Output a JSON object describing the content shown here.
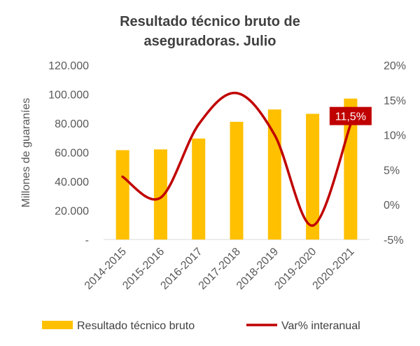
{
  "chart_data": {
    "type": "bar+line",
    "title_lines": [
      "Resultado técnico bruto de",
      "aseguradoras. Julio"
    ],
    "ylabel": "Millones de guaraníes",
    "categories": [
      "2014-2015",
      "2015-2016",
      "2016-2017",
      "2017-2018",
      "2018-2019",
      "2019-2020",
      "2020-2021"
    ],
    "series": [
      {
        "name": "Resultado técnico bruto",
        "type": "bar",
        "axis": "left",
        "color": "#FFC000",
        "values": [
          61500,
          62000,
          69500,
          81000,
          89500,
          86500,
          97000
        ]
      },
      {
        "name": "Var% interanual",
        "type": "line",
        "axis": "right",
        "color": "#C00000",
        "values": [
          4.0,
          1.0,
          11.5,
          16.0,
          10.0,
          -3.0,
          11.5
        ]
      }
    ],
    "left_axis": {
      "ylim": [
        0,
        120000
      ],
      "ticks": [
        "-",
        "20.000",
        "40.000",
        "60.000",
        "80.000",
        "100.000",
        "120.000"
      ]
    },
    "right_axis": {
      "ylim": [
        -5,
        20
      ],
      "ticks": [
        "-5%",
        "0%",
        "5%",
        "10%",
        "15%",
        "20%"
      ]
    },
    "data_labels": [
      {
        "series": 1,
        "index": 6,
        "text": "11,5%",
        "bg": "#C00000"
      }
    ],
    "grid": false,
    "legend": "bottom"
  }
}
